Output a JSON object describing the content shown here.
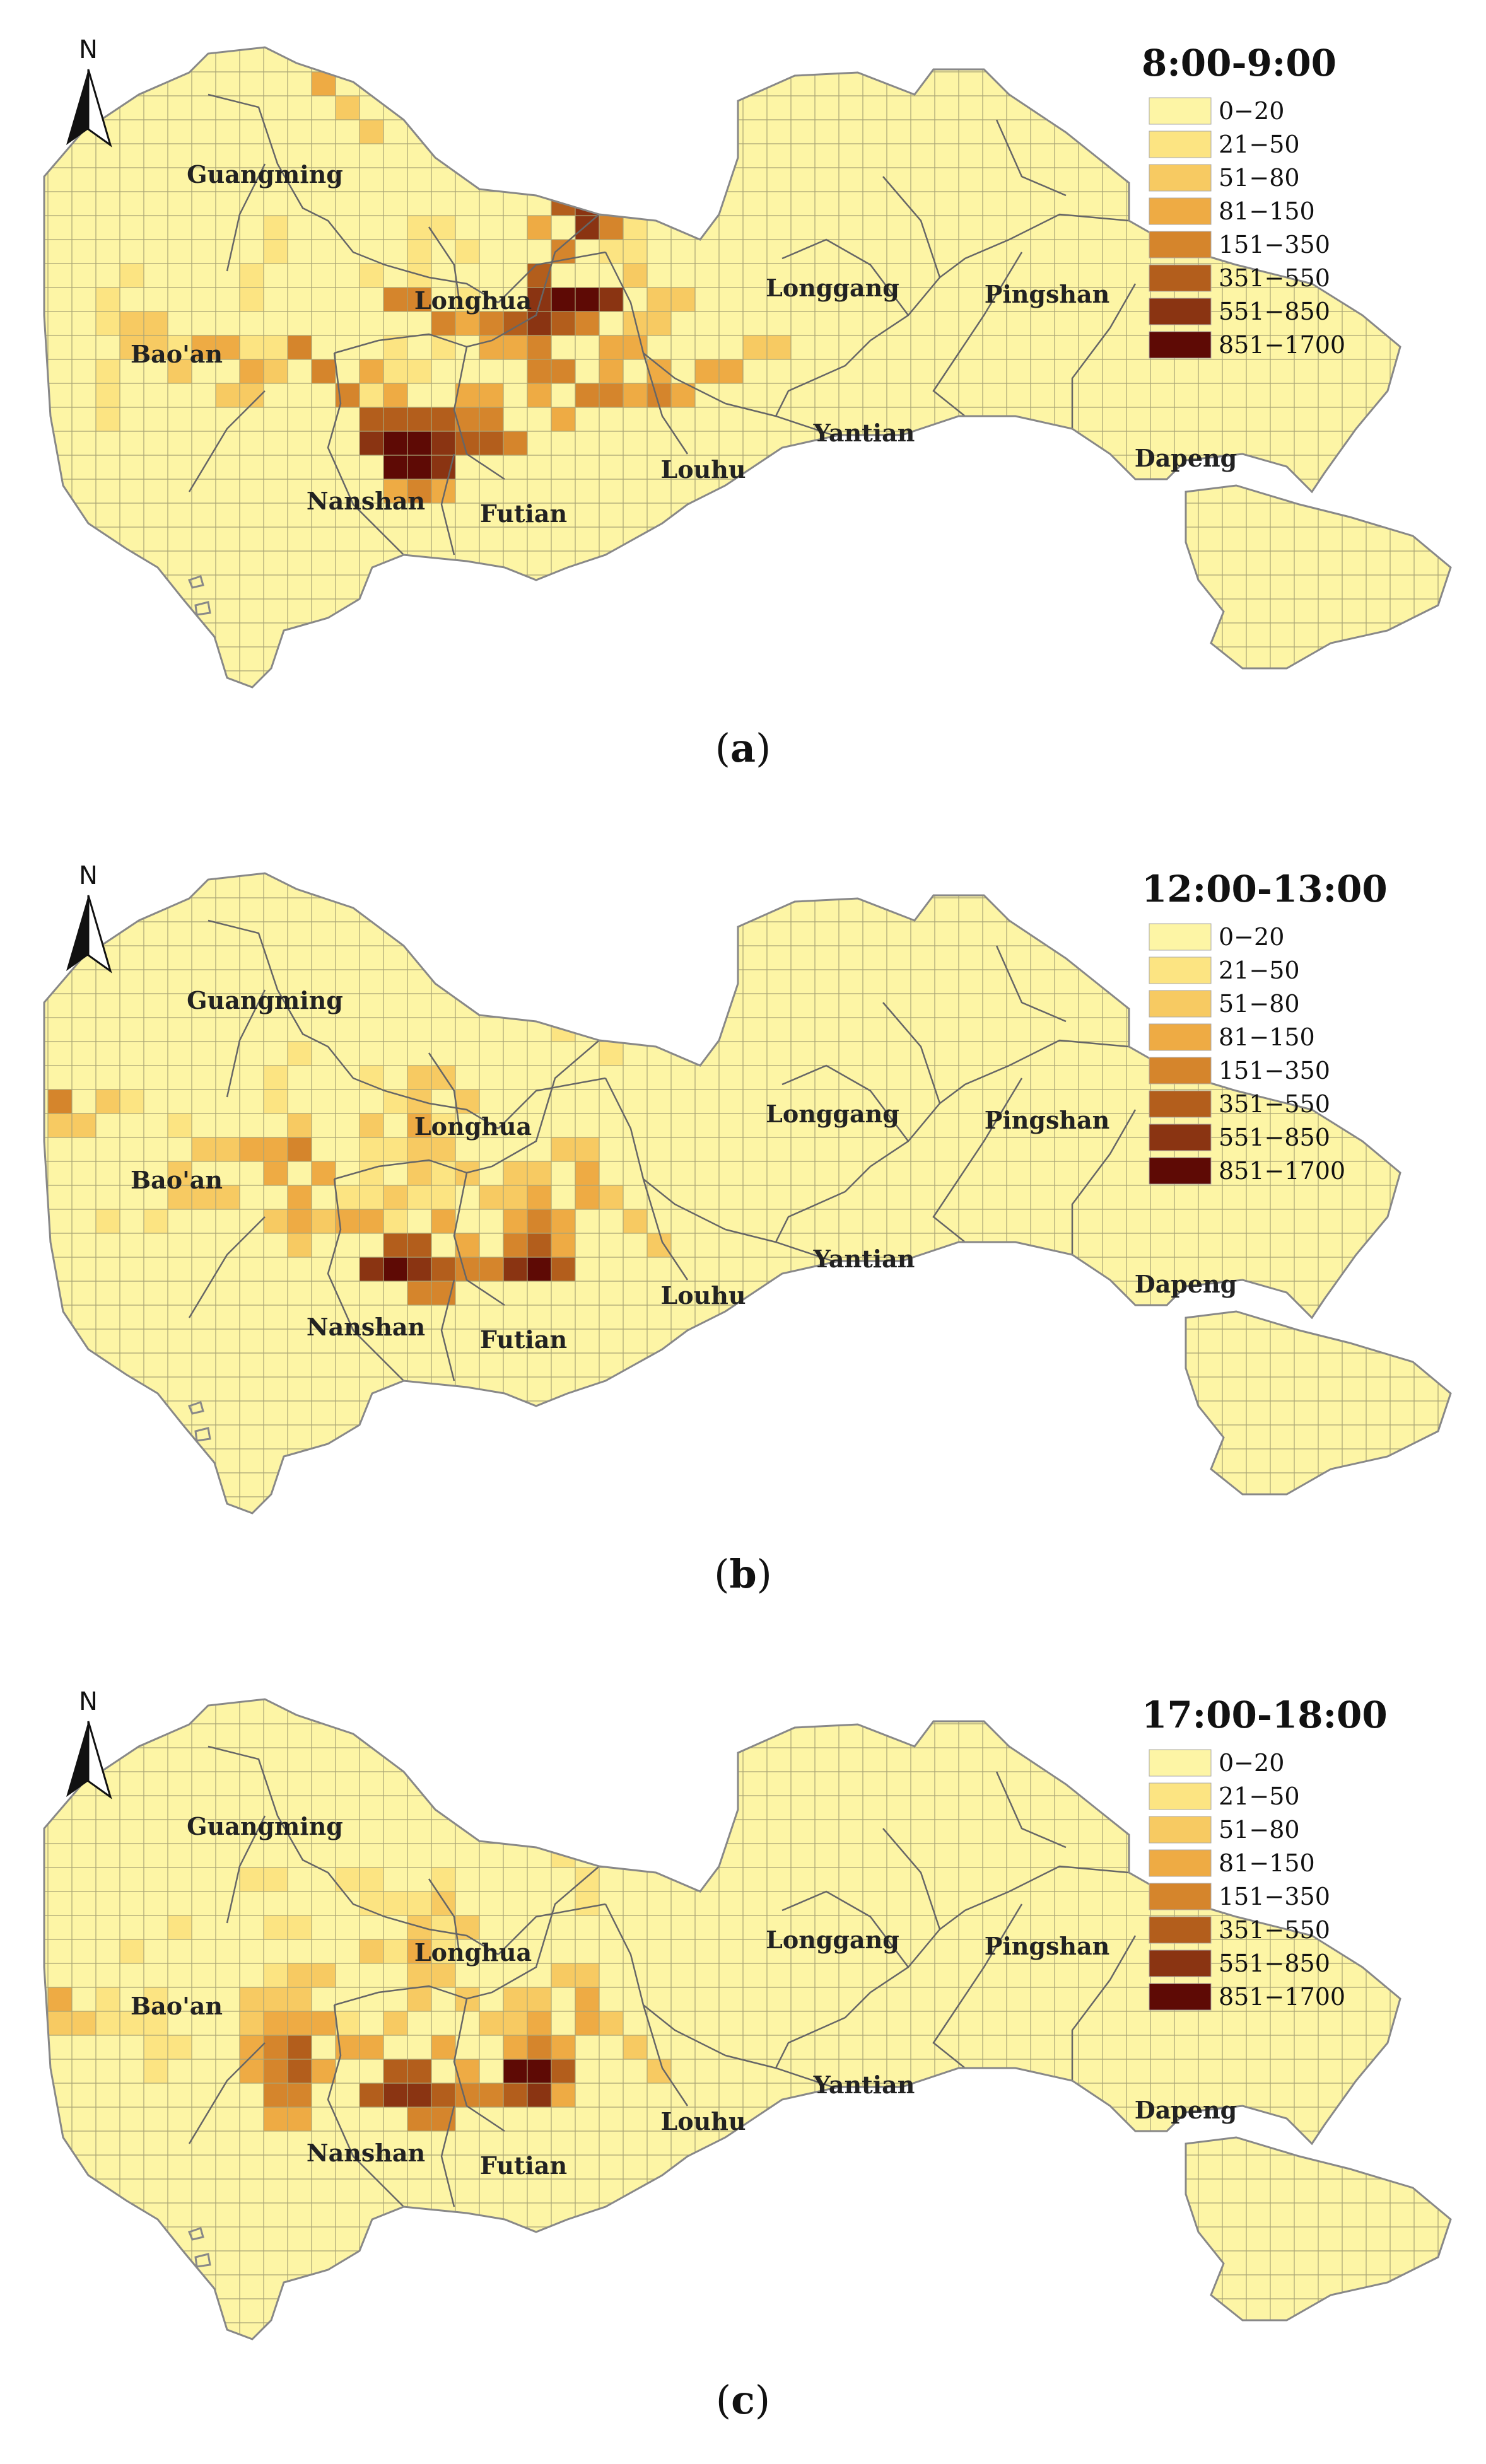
{
  "colors": [
    "#fdf5a5",
    "#fce482",
    "#f7ca62",
    "#eeab44",
    "#d5852c",
    "#b35e1c",
    "#8a3412",
    "#5e0a05"
  ],
  "legend": [
    "0−20",
    "21−50",
    "51−80",
    "81−150",
    "151−350",
    "351−550",
    "551−850",
    "851−1700"
  ],
  "north_label": "N",
  "districts": [
    "Guangming",
    "Longhua",
    "Longgang",
    "Pingshan",
    "Bao'an",
    "Yantian",
    "Dapeng",
    "Nanshan",
    "Futian",
    "Louhu"
  ],
  "panels": [
    {
      "caption_open": "(",
      "caption_letter": "a",
      "caption_close": ")",
      "title": "8:00-9:00"
    },
    {
      "caption_open": "(",
      "caption_letter": "b",
      "caption_close": ")",
      "title": "12:00-13:00"
    },
    {
      "caption_open": "(",
      "caption_letter": "c",
      "caption_close": ")",
      "title": "17:00-18:00"
    }
  ]
}
